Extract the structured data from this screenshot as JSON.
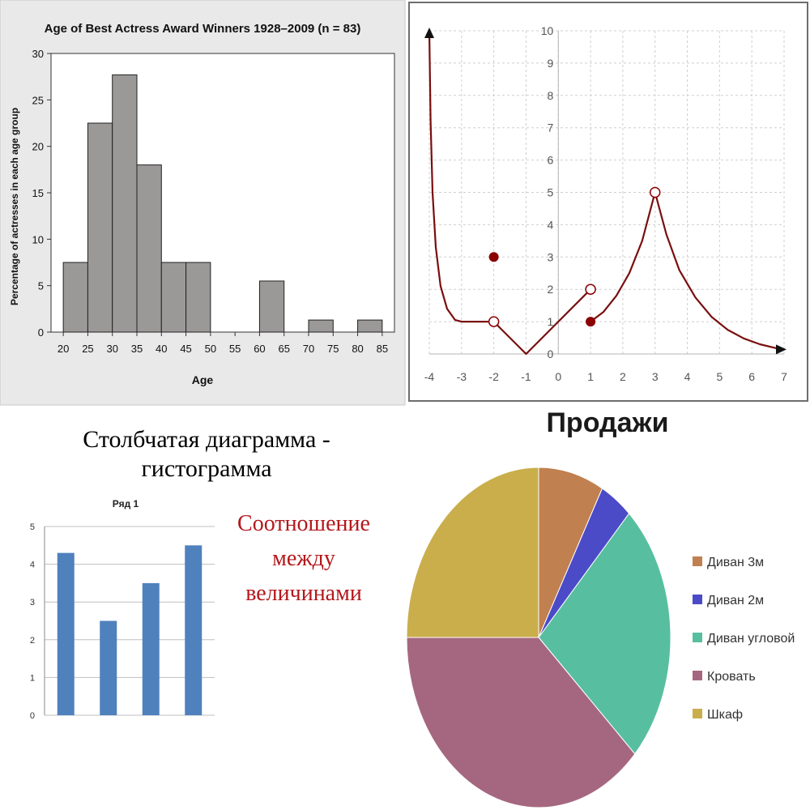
{
  "headings": {
    "main": "Столбчатая диаграмма - гистограмма",
    "note": "Соотношение между величинами"
  },
  "chart_data": [
    {
      "type": "bar",
      "title": "Age of Best Actress Award Winners 1928–2009 (n = 83)",
      "xlabel": "Age",
      "ylabel": "Percentage of actresses in each age group",
      "bin_edges": [
        20,
        25,
        30,
        35,
        40,
        45,
        50,
        55,
        60,
        65,
        70,
        75,
        80,
        85
      ],
      "values": [
        7.5,
        22.5,
        27.7,
        18.0,
        7.5,
        7.5,
        0,
        0,
        5.5,
        0,
        1.3,
        0,
        1.3
      ],
      "ylim": [
        0,
        30
      ],
      "yticks": [
        0,
        5,
        10,
        15,
        20,
        25,
        30
      ],
      "xticks": [
        20,
        25,
        30,
        35,
        40,
        45,
        50,
        55,
        60,
        65,
        70,
        75,
        80,
        85
      ],
      "grid": false,
      "colors": {
        "bar": "#9b9898",
        "background": "#e9e9e9"
      }
    },
    {
      "type": "line",
      "xlim": [
        -4,
        7
      ],
      "ylim": [
        0,
        10
      ],
      "xticks": [
        -4,
        -3,
        -2,
        -1,
        0,
        1,
        2,
        3,
        4,
        5,
        6,
        7
      ],
      "yticks": [
        0,
        1,
        2,
        3,
        4,
        5,
        6,
        7,
        8,
        9,
        10
      ],
      "grid": true,
      "series": [
        {
          "points": [
            [
              -4,
              10
            ],
            [
              -3.96,
              7.2
            ],
            [
              -3.9,
              5.0
            ],
            [
              -3.8,
              3.3
            ],
            [
              -3.65,
              2.1
            ],
            [
              -3.45,
              1.4
            ],
            [
              -3.2,
              1.05
            ],
            [
              -3,
              1
            ],
            [
              -2,
              1
            ]
          ]
        },
        {
          "points": [
            [
              -2,
              1
            ],
            [
              -1,
              0
            ],
            [
              1,
              2
            ]
          ]
        },
        {
          "points": [
            [
              1,
              1
            ],
            [
              1.4,
              1.3
            ],
            [
              1.8,
              1.8
            ],
            [
              2.2,
              2.5
            ],
            [
              2.6,
              3.5
            ],
            [
              3,
              5
            ]
          ]
        },
        {
          "points": [
            [
              3,
              5
            ],
            [
              3.35,
              3.7
            ],
            [
              3.75,
              2.6
            ],
            [
              4.25,
              1.75
            ],
            [
              4.75,
              1.15
            ],
            [
              5.25,
              0.75
            ],
            [
              5.75,
              0.48
            ],
            [
              6.25,
              0.3
            ],
            [
              6.75,
              0.18
            ],
            [
              7,
              0.14
            ]
          ]
        }
      ],
      "points_filled": [
        [
          -2,
          3
        ],
        [
          1,
          1
        ]
      ],
      "points_open": [
        [
          -2,
          1
        ],
        [
          1,
          2
        ],
        [
          3,
          5
        ]
      ],
      "arrows": [
        "up-at-start",
        "right-at-end"
      ],
      "colors": {
        "curve": "#7a0e0e",
        "point": "#8b0000",
        "grid": "#cfcfcf"
      }
    },
    {
      "type": "bar",
      "title": "Ряд 1",
      "categories": [
        "",
        "",
        "",
        ""
      ],
      "values": [
        4.3,
        2.5,
        3.5,
        4.5
      ],
      "ylim": [
        0,
        5
      ],
      "yticks": [
        0,
        1,
        2,
        3,
        4,
        5
      ],
      "grid": true,
      "colors": {
        "bar": "#4f81bd",
        "grid": "#bfbfbf"
      }
    },
    {
      "type": "pie",
      "title": "Продажи",
      "labels": [
        "Диван 3м",
        "Диван 2м",
        "Диван угловой",
        "Кровать",
        "Шкаф"
      ],
      "values": [
        8,
        4,
        25,
        38,
        25
      ],
      "legend": "right",
      "colors": [
        "#c0804f",
        "#4b4bc8",
        "#57bf9f",
        "#a5677f",
        "#c9ae4b"
      ]
    }
  ]
}
